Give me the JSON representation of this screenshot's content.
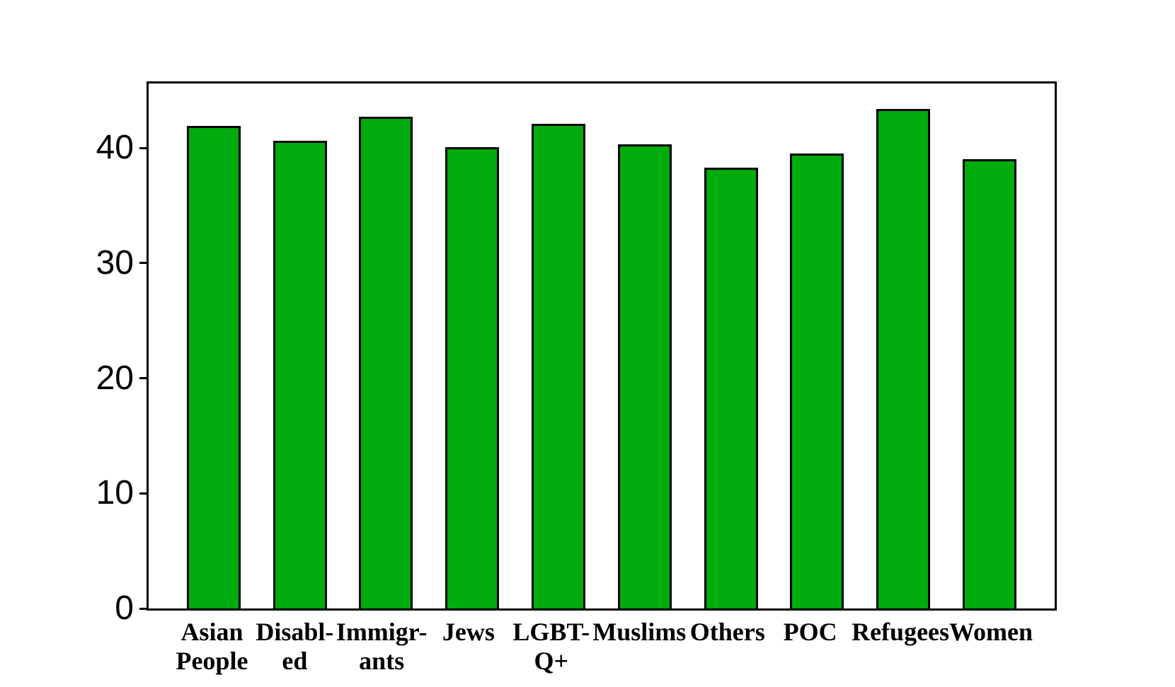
{
  "chart_data": {
    "type": "bar",
    "title": "",
    "xlabel": "",
    "ylabel": "",
    "categories": [
      "Asian People",
      "Disabled",
      "Immigrants",
      "Jews",
      "LGBTQ+",
      "Muslims",
      "Others",
      "POC",
      "Refugees",
      "Women"
    ],
    "x_tick_labels": [
      "Asian\nPeople",
      "Disabl-\ned",
      "Immigr-\nants",
      "Jews",
      "LGBT-\nQ+",
      "Muslims",
      "Others",
      "POC",
      "Refugees",
      "Women"
    ],
    "values": [
      41.9,
      40.6,
      42.7,
      40.1,
      42.1,
      40.3,
      38.3,
      39.5,
      43.4,
      39.0
    ],
    "ylim": [
      0,
      45.6
    ],
    "yticks": [
      0,
      10,
      20,
      30,
      40
    ],
    "ytick_labels": [
      "0",
      "10",
      "20",
      "30",
      "40"
    ],
    "grid": false,
    "legend": null,
    "bar_color": "#00ab0e",
    "bar_edge_color": "#000000",
    "background_color": "#ffffff"
  }
}
